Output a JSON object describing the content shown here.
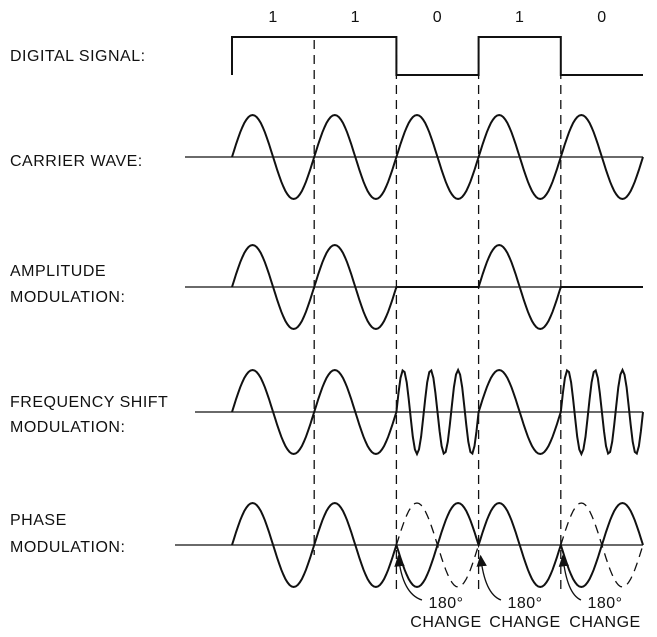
{
  "bits": [
    "1",
    "1",
    "0",
    "1",
    "0"
  ],
  "rows": [
    {
      "label": [
        "DIGITAL SIGNAL:"
      ]
    },
    {
      "label": [
        "CARRIER WAVE:"
      ]
    },
    {
      "label": [
        "AMPLITUDE",
        "MODULATION:"
      ]
    },
    {
      "label": [
        "FREQUENCY SHIFT",
        "MODULATION:"
      ]
    },
    {
      "label": [
        "PHASE",
        "MODULATION:"
      ]
    }
  ],
  "annotations": [
    {
      "lines": [
        "180°",
        "CHANGE"
      ]
    },
    {
      "lines": [
        "180°",
        "CHANGE"
      ]
    },
    {
      "lines": [
        "180°",
        "CHANGE"
      ]
    }
  ]
}
